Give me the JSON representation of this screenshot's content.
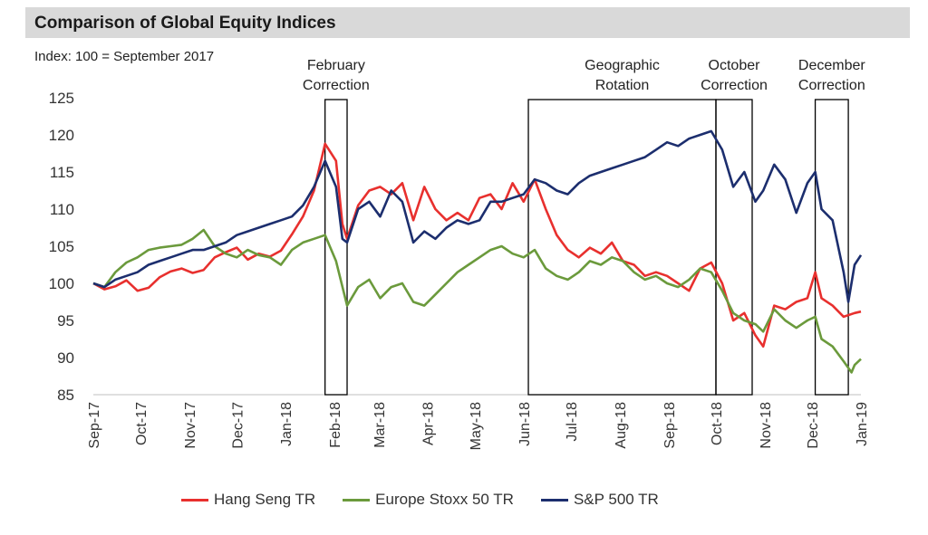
{
  "chart_data": {
    "type": "line",
    "title": "Comparison of Global Equity Indices",
    "subtitle": "Index: 100 = September 2017",
    "ylim": [
      85,
      125
    ],
    "yticks": [
      85,
      90,
      95,
      100,
      105,
      110,
      115,
      120,
      125
    ],
    "xlim": [
      "2017-09-01",
      "2019-01-01"
    ],
    "xticks": [
      {
        "date": "2017-09-01",
        "label": "Sep-17"
      },
      {
        "date": "2017-10-01",
        "label": "Oct-17"
      },
      {
        "date": "2017-11-01",
        "label": "Nov-17"
      },
      {
        "date": "2017-12-01",
        "label": "Dec-17"
      },
      {
        "date": "2018-01-01",
        "label": "Jan-18"
      },
      {
        "date": "2018-02-01",
        "label": "Feb-18"
      },
      {
        "date": "2018-03-01",
        "label": "Mar-18"
      },
      {
        "date": "2018-04-01",
        "label": "Apr-18"
      },
      {
        "date": "2018-05-01",
        "label": "May-18"
      },
      {
        "date": "2018-06-01",
        "label": "Jun-18"
      },
      {
        "date": "2018-07-01",
        "label": "Jul-18"
      },
      {
        "date": "2018-08-01",
        "label": "Aug-18"
      },
      {
        "date": "2018-09-01",
        "label": "Sep-18"
      },
      {
        "date": "2018-10-01",
        "label": "Oct-18"
      },
      {
        "date": "2018-11-01",
        "label": "Nov-18"
      },
      {
        "date": "2018-12-01",
        "label": "Dec-18"
      },
      {
        "date": "2019-01-01",
        "label": "Jan-19"
      }
    ],
    "grid": false,
    "legend_position": "bottom",
    "annotations": [
      {
        "label": [
          "February",
          "Correction"
        ],
        "start": "2018-01-26",
        "end": "2018-02-09"
      },
      {
        "label": [
          "Geographic",
          "Rotation"
        ],
        "start": "2018-06-04",
        "end": "2018-10-01"
      },
      {
        "label": [
          "October",
          "Correction"
        ],
        "start": "2018-10-01",
        "end": "2018-10-24"
      },
      {
        "label": [
          "December",
          "Correction"
        ],
        "start": "2018-12-03",
        "end": "2018-12-24"
      }
    ],
    "series": [
      {
        "name": "Hang Seng TR",
        "color": "#e8302e",
        "points": [
          [
            "2017-09-01",
            100.0
          ],
          [
            "2017-09-08",
            99.2
          ],
          [
            "2017-09-15",
            99.6
          ],
          [
            "2017-09-22",
            100.4
          ],
          [
            "2017-09-29",
            99.0
          ],
          [
            "2017-10-06",
            99.4
          ],
          [
            "2017-10-13",
            100.8
          ],
          [
            "2017-10-20",
            101.6
          ],
          [
            "2017-10-27",
            102.0
          ],
          [
            "2017-11-03",
            101.4
          ],
          [
            "2017-11-10",
            101.8
          ],
          [
            "2017-11-17",
            103.5
          ],
          [
            "2017-11-24",
            104.2
          ],
          [
            "2017-12-01",
            104.8
          ],
          [
            "2017-12-08",
            103.2
          ],
          [
            "2017-12-15",
            104.0
          ],
          [
            "2017-12-22",
            103.6
          ],
          [
            "2017-12-29",
            104.4
          ],
          [
            "2018-01-05",
            106.6
          ],
          [
            "2018-01-12",
            109.0
          ],
          [
            "2018-01-19",
            112.5
          ],
          [
            "2018-01-26",
            118.8
          ],
          [
            "2018-02-02",
            116.5
          ],
          [
            "2018-02-06",
            108.0
          ],
          [
            "2018-02-09",
            106.0
          ],
          [
            "2018-02-16",
            110.5
          ],
          [
            "2018-02-23",
            112.5
          ],
          [
            "2018-03-02",
            113.0
          ],
          [
            "2018-03-09",
            112.0
          ],
          [
            "2018-03-16",
            113.5
          ],
          [
            "2018-03-23",
            108.5
          ],
          [
            "2018-03-30",
            113.0
          ],
          [
            "2018-04-06",
            110.0
          ],
          [
            "2018-04-13",
            108.5
          ],
          [
            "2018-04-20",
            109.5
          ],
          [
            "2018-04-27",
            108.5
          ],
          [
            "2018-05-04",
            111.5
          ],
          [
            "2018-05-11",
            112.0
          ],
          [
            "2018-05-18",
            110.0
          ],
          [
            "2018-05-25",
            113.5
          ],
          [
            "2018-06-01",
            111.0
          ],
          [
            "2018-06-08",
            114.0
          ],
          [
            "2018-06-15",
            110.0
          ],
          [
            "2018-06-22",
            106.5
          ],
          [
            "2018-06-29",
            104.5
          ],
          [
            "2018-07-06",
            103.5
          ],
          [
            "2018-07-13",
            104.8
          ],
          [
            "2018-07-20",
            104.0
          ],
          [
            "2018-07-27",
            105.5
          ],
          [
            "2018-08-03",
            103.0
          ],
          [
            "2018-08-10",
            102.5
          ],
          [
            "2018-08-17",
            101.0
          ],
          [
            "2018-08-24",
            101.5
          ],
          [
            "2018-08-31",
            101.0
          ],
          [
            "2018-09-07",
            100.0
          ],
          [
            "2018-09-14",
            99.0
          ],
          [
            "2018-09-21",
            102.0
          ],
          [
            "2018-09-28",
            102.8
          ],
          [
            "2018-10-05",
            100.0
          ],
          [
            "2018-10-12",
            95.0
          ],
          [
            "2018-10-19",
            96.0
          ],
          [
            "2018-10-26",
            93.0
          ],
          [
            "2018-10-31",
            91.5
          ],
          [
            "2018-11-07",
            97.0
          ],
          [
            "2018-11-14",
            96.5
          ],
          [
            "2018-11-21",
            97.5
          ],
          [
            "2018-11-28",
            98.0
          ],
          [
            "2018-12-03",
            101.5
          ],
          [
            "2018-12-07",
            98.0
          ],
          [
            "2018-12-14",
            97.0
          ],
          [
            "2018-12-21",
            95.5
          ],
          [
            "2018-12-28",
            96.0
          ],
          [
            "2019-01-01",
            96.2
          ]
        ]
      },
      {
        "name": "Europe Stoxx 50 TR",
        "color": "#6b9a3c",
        "points": [
          [
            "2017-09-01",
            100.0
          ],
          [
            "2017-09-08",
            99.5
          ],
          [
            "2017-09-15",
            101.5
          ],
          [
            "2017-09-22",
            102.8
          ],
          [
            "2017-09-29",
            103.5
          ],
          [
            "2017-10-06",
            104.5
          ],
          [
            "2017-10-13",
            104.8
          ],
          [
            "2017-10-20",
            105.0
          ],
          [
            "2017-10-27",
            105.2
          ],
          [
            "2017-11-03",
            106.0
          ],
          [
            "2017-11-10",
            107.2
          ],
          [
            "2017-11-17",
            105.0
          ],
          [
            "2017-11-24",
            104.0
          ],
          [
            "2017-12-01",
            103.5
          ],
          [
            "2017-12-08",
            104.5
          ],
          [
            "2017-12-15",
            103.8
          ],
          [
            "2017-12-22",
            103.5
          ],
          [
            "2017-12-29",
            102.5
          ],
          [
            "2018-01-05",
            104.5
          ],
          [
            "2018-01-12",
            105.5
          ],
          [
            "2018-01-19",
            106.0
          ],
          [
            "2018-01-26",
            106.5
          ],
          [
            "2018-02-02",
            103.0
          ],
          [
            "2018-02-09",
            97.0
          ],
          [
            "2018-02-16",
            99.5
          ],
          [
            "2018-02-23",
            100.5
          ],
          [
            "2018-03-02",
            98.0
          ],
          [
            "2018-03-09",
            99.5
          ],
          [
            "2018-03-16",
            100.0
          ],
          [
            "2018-03-23",
            97.5
          ],
          [
            "2018-03-30",
            97.0
          ],
          [
            "2018-04-06",
            98.5
          ],
          [
            "2018-04-13",
            100.0
          ],
          [
            "2018-04-20",
            101.5
          ],
          [
            "2018-04-27",
            102.5
          ],
          [
            "2018-05-04",
            103.5
          ],
          [
            "2018-05-11",
            104.5
          ],
          [
            "2018-05-18",
            105.0
          ],
          [
            "2018-05-25",
            104.0
          ],
          [
            "2018-06-01",
            103.5
          ],
          [
            "2018-06-08",
            104.5
          ],
          [
            "2018-06-15",
            102.0
          ],
          [
            "2018-06-22",
            101.0
          ],
          [
            "2018-06-29",
            100.5
          ],
          [
            "2018-07-06",
            101.5
          ],
          [
            "2018-07-13",
            103.0
          ],
          [
            "2018-07-20",
            102.5
          ],
          [
            "2018-07-27",
            103.5
          ],
          [
            "2018-08-03",
            103.0
          ],
          [
            "2018-08-10",
            101.5
          ],
          [
            "2018-08-17",
            100.5
          ],
          [
            "2018-08-24",
            101.0
          ],
          [
            "2018-08-31",
            100.0
          ],
          [
            "2018-09-07",
            99.5
          ],
          [
            "2018-09-14",
            100.5
          ],
          [
            "2018-09-21",
            102.0
          ],
          [
            "2018-09-28",
            101.5
          ],
          [
            "2018-10-05",
            99.0
          ],
          [
            "2018-10-12",
            96.0
          ],
          [
            "2018-10-19",
            95.0
          ],
          [
            "2018-10-26",
            94.5
          ],
          [
            "2018-10-31",
            93.5
          ],
          [
            "2018-11-07",
            96.5
          ],
          [
            "2018-11-14",
            95.0
          ],
          [
            "2018-11-21",
            94.0
          ],
          [
            "2018-11-28",
            95.0
          ],
          [
            "2018-12-03",
            95.5
          ],
          [
            "2018-12-07",
            92.5
          ],
          [
            "2018-12-14",
            91.5
          ],
          [
            "2018-12-21",
            89.5
          ],
          [
            "2018-12-26",
            88.0
          ],
          [
            "2018-12-28",
            89.0
          ],
          [
            "2019-01-01",
            89.8
          ]
        ]
      },
      {
        "name": "S&P 500 TR",
        "color": "#1c2e6e",
        "points": [
          [
            "2017-09-01",
            100.0
          ],
          [
            "2017-09-08",
            99.5
          ],
          [
            "2017-09-15",
            100.5
          ],
          [
            "2017-09-22",
            101.0
          ],
          [
            "2017-09-29",
            101.5
          ],
          [
            "2017-10-06",
            102.5
          ],
          [
            "2017-10-13",
            103.0
          ],
          [
            "2017-10-20",
            103.5
          ],
          [
            "2017-10-27",
            104.0
          ],
          [
            "2017-11-03",
            104.5
          ],
          [
            "2017-11-10",
            104.5
          ],
          [
            "2017-11-17",
            105.0
          ],
          [
            "2017-11-24",
            105.5
          ],
          [
            "2017-12-01",
            106.5
          ],
          [
            "2017-12-08",
            107.0
          ],
          [
            "2017-12-15",
            107.5
          ],
          [
            "2017-12-22",
            108.0
          ],
          [
            "2017-12-29",
            108.5
          ],
          [
            "2018-01-05",
            109.0
          ],
          [
            "2018-01-12",
            110.5
          ],
          [
            "2018-01-19",
            113.0
          ],
          [
            "2018-01-26",
            116.5
          ],
          [
            "2018-02-02",
            113.0
          ],
          [
            "2018-02-06",
            106.0
          ],
          [
            "2018-02-09",
            105.5
          ],
          [
            "2018-02-16",
            110.0
          ],
          [
            "2018-02-23",
            111.0
          ],
          [
            "2018-03-02",
            109.0
          ],
          [
            "2018-03-09",
            112.5
          ],
          [
            "2018-03-16",
            111.0
          ],
          [
            "2018-03-23",
            105.5
          ],
          [
            "2018-03-30",
            107.0
          ],
          [
            "2018-04-06",
            106.0
          ],
          [
            "2018-04-13",
            107.5
          ],
          [
            "2018-04-20",
            108.5
          ],
          [
            "2018-04-27",
            108.0
          ],
          [
            "2018-05-04",
            108.5
          ],
          [
            "2018-05-11",
            111.0
          ],
          [
            "2018-05-18",
            111.0
          ],
          [
            "2018-05-25",
            111.5
          ],
          [
            "2018-06-01",
            112.0
          ],
          [
            "2018-06-08",
            114.0
          ],
          [
            "2018-06-15",
            113.5
          ],
          [
            "2018-06-22",
            112.5
          ],
          [
            "2018-06-29",
            112.0
          ],
          [
            "2018-07-06",
            113.5
          ],
          [
            "2018-07-13",
            114.5
          ],
          [
            "2018-07-20",
            115.0
          ],
          [
            "2018-07-27",
            115.5
          ],
          [
            "2018-08-03",
            116.0
          ],
          [
            "2018-08-10",
            116.5
          ],
          [
            "2018-08-17",
            117.0
          ],
          [
            "2018-08-24",
            118.0
          ],
          [
            "2018-08-31",
            119.0
          ],
          [
            "2018-09-07",
            118.5
          ],
          [
            "2018-09-14",
            119.5
          ],
          [
            "2018-09-21",
            120.0
          ],
          [
            "2018-09-28",
            120.5
          ],
          [
            "2018-10-05",
            118.0
          ],
          [
            "2018-10-12",
            113.0
          ],
          [
            "2018-10-19",
            115.0
          ],
          [
            "2018-10-26",
            111.0
          ],
          [
            "2018-10-31",
            112.5
          ],
          [
            "2018-11-07",
            116.0
          ],
          [
            "2018-11-14",
            114.0
          ],
          [
            "2018-11-21",
            109.5
          ],
          [
            "2018-11-28",
            113.5
          ],
          [
            "2018-12-03",
            115.0
          ],
          [
            "2018-12-07",
            110.0
          ],
          [
            "2018-12-14",
            108.5
          ],
          [
            "2018-12-21",
            101.5
          ],
          [
            "2018-12-24",
            97.5
          ],
          [
            "2018-12-28",
            102.5
          ],
          [
            "2019-01-01",
            103.8
          ]
        ]
      }
    ]
  }
}
